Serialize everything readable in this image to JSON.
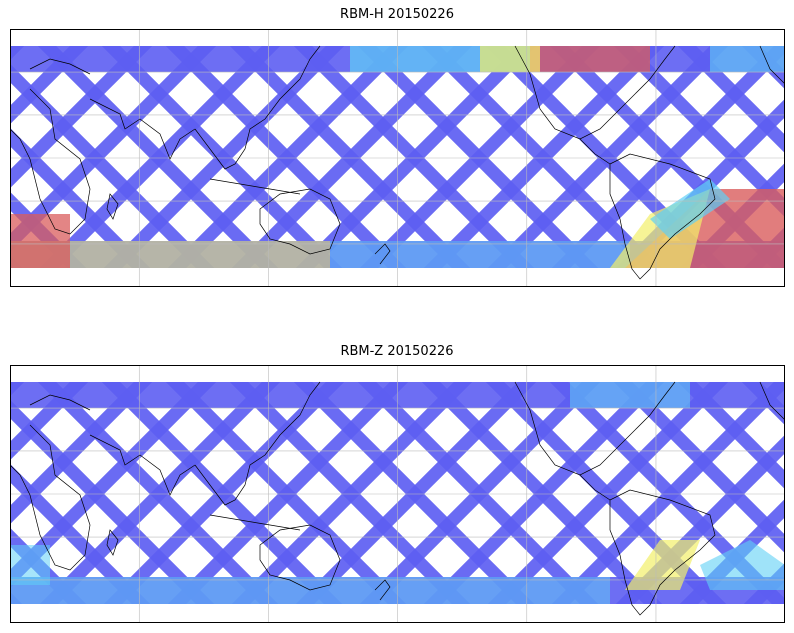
{
  "panels": [
    {
      "title": "RBM-H 20150226"
    },
    {
      "title": "RBM-Z 20150226"
    }
  ],
  "colors": {
    "track_low": "#5d5ef2",
    "track_mid": "#5fd0f5",
    "track_high": "#f2f06a",
    "track_max": "#d95c5c",
    "coastline": "#000000",
    "grid": "#bbbbbb",
    "frame": "#000000"
  }
}
